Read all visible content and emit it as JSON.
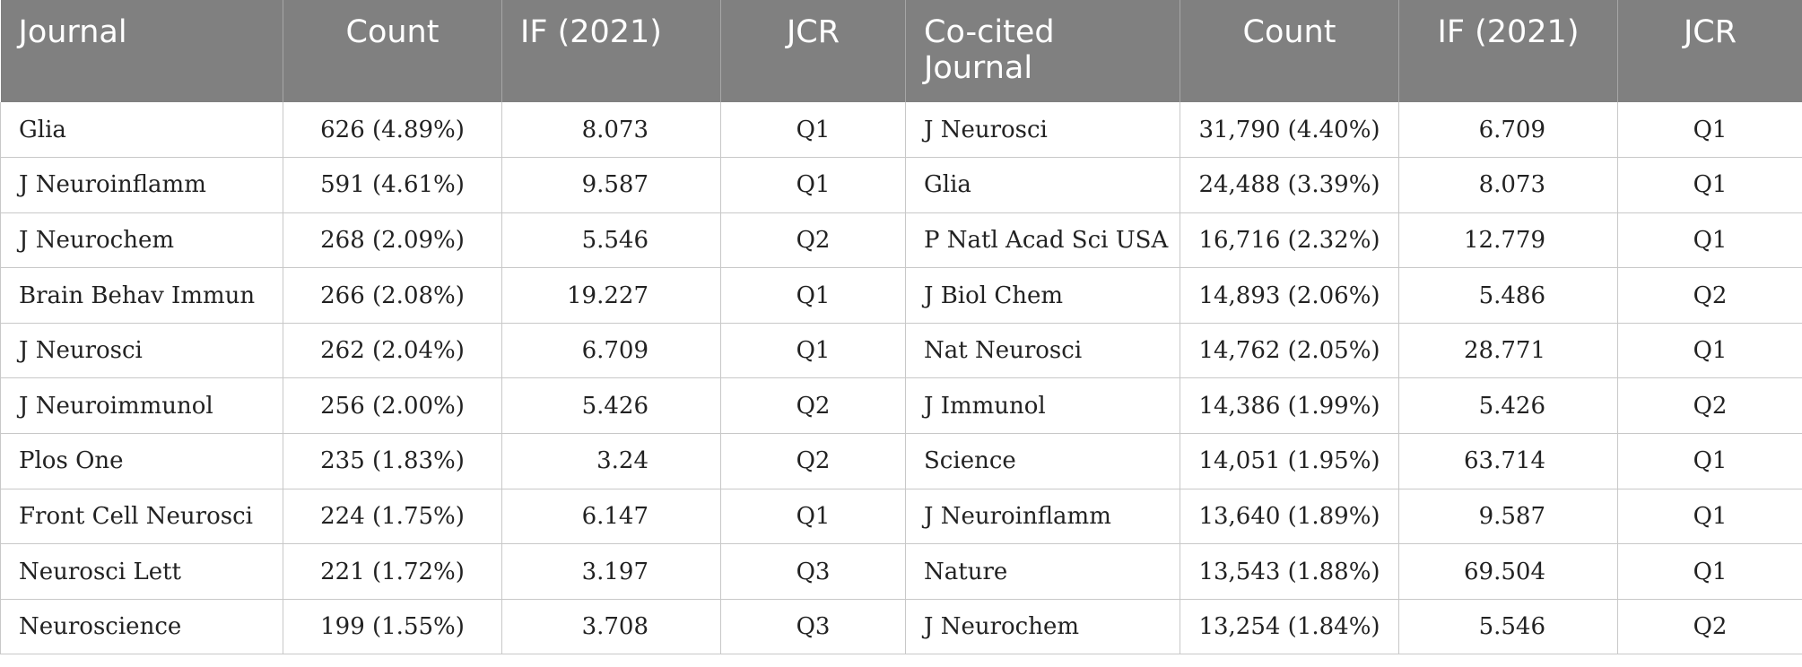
{
  "headers": [
    "Journal",
    "Count",
    "IF (2021)",
    "JCR",
    "Co-cited Journal",
    "Count",
    "IF (2021)",
    "JCR"
  ],
  "rows": [
    [
      "Glia",
      "626 (4.89%)",
      "8.073",
      "Q1",
      "J Neurosci",
      "31,790 (4.40%)",
      "6.709",
      "Q1"
    ],
    [
      "J Neuroinflamm",
      "591 (4.61%)",
      "9.587",
      "Q1",
      "Glia",
      "24,488 (3.39%)",
      "8.073",
      "Q1"
    ],
    [
      "J Neurochem",
      "268 (2.09%)",
      "5.546",
      "Q2",
      "P Natl Acad Sci USA",
      "16,716 (2.32%)",
      "12.779",
      "Q1"
    ],
    [
      "Brain Behav Immun",
      "266 (2.08%)",
      "19.227",
      "Q1",
      "J Biol Chem",
      "14,893 (2.06%)",
      "5.486",
      "Q2"
    ],
    [
      "J Neurosci",
      "262 (2.04%)",
      "6.709",
      "Q1",
      "Nat Neurosci",
      "14,762 (2.05%)",
      "28.771",
      "Q1"
    ],
    [
      "J Neuroimmunol",
      "256 (2.00%)",
      "5.426",
      "Q2",
      "J Immunol",
      "14,386 (1.99%)",
      "5.426",
      "Q2"
    ],
    [
      "Plos One",
      "235 (1.83%)",
      "3.24",
      "Q2",
      "Science",
      "14,051 (1.95%)",
      "63.714",
      "Q1"
    ],
    [
      "Front Cell Neurosci",
      "224 (1.75%)",
      "6.147",
      "Q1",
      "J Neuroinflamm",
      "13,640 (1.89%)",
      "9.587",
      "Q1"
    ],
    [
      "Neurosci Lett",
      "221 (1.72%)",
      "3.197",
      "Q3",
      "Nature",
      "13,543 (1.88%)",
      "69.504",
      "Q1"
    ],
    [
      "Neuroscience",
      "199 (1.55%)",
      "3.708",
      "Q3",
      "J Neurochem",
      "13,254 (1.84%)",
      "5.546",
      "Q2"
    ]
  ]
}
